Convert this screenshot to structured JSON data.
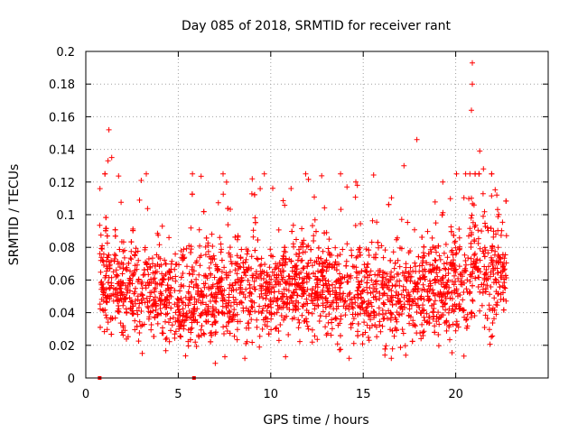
{
  "chart_data": {
    "type": "scatter",
    "title": "Day 085 of 2018, SRMTID for receiver rant",
    "xlabel": "GPS time / hours",
    "ylabel": "SRMTID / TECUs",
    "xlim": [
      0,
      25
    ],
    "ylim": [
      0,
      0.2
    ],
    "xticks": [
      0,
      5,
      10,
      15,
      20
    ],
    "xtick_labels": [
      "0",
      "5",
      "10",
      "15",
      "20"
    ],
    "yticks": [
      0,
      0.02,
      0.04,
      0.06,
      0.08,
      0.1,
      0.12,
      0.14,
      0.16,
      0.18,
      0.2
    ],
    "ytick_labels": [
      "0",
      "0.02",
      "0.04",
      "0.06",
      "0.08",
      "0.1",
      "0.12",
      "0.14",
      "0.16",
      "0.18",
      "0.2"
    ],
    "grid": true,
    "marker": "+",
    "marker_color": "#ff0000",
    "series": [
      {
        "name": "SRMTID",
        "color": "#ff0000",
        "approx_point_count": 2600,
        "time_range_hours": [
          0.75,
          22.75
        ],
        "baseline_profile": [
          [
            0.75,
            0.062
          ],
          [
            1.5,
            0.058
          ],
          [
            2.5,
            0.052
          ],
          [
            3.5,
            0.055
          ],
          [
            4.5,
            0.05
          ],
          [
            5.5,
            0.048
          ],
          [
            6.5,
            0.052
          ],
          [
            7.5,
            0.05
          ],
          [
            8.5,
            0.055
          ],
          [
            9.5,
            0.053
          ],
          [
            10.5,
            0.055
          ],
          [
            11.5,
            0.058
          ],
          [
            12.5,
            0.056
          ],
          [
            13.5,
            0.057
          ],
          [
            14.5,
            0.054
          ],
          [
            15.5,
            0.052
          ],
          [
            16.5,
            0.05
          ],
          [
            17.5,
            0.052
          ],
          [
            18.5,
            0.054
          ],
          [
            19.5,
            0.052
          ],
          [
            20.5,
            0.062
          ],
          [
            21.0,
            0.072
          ],
          [
            21.5,
            0.068
          ],
          [
            22.0,
            0.065
          ],
          [
            22.75,
            0.063
          ]
        ],
        "spread": 0.015,
        "notable_points": [
          {
            "x": 1.25,
            "y": 0.152
          },
          {
            "x": 1.2,
            "y": 0.133
          },
          {
            "x": 1.4,
            "y": 0.135
          },
          {
            "x": 3.0,
            "y": 0.121
          },
          {
            "x": 9.0,
            "y": 0.122
          },
          {
            "x": 11.1,
            "y": 0.116
          },
          {
            "x": 14.6,
            "y": 0.12
          },
          {
            "x": 17.2,
            "y": 0.13
          },
          {
            "x": 17.9,
            "y": 0.146
          },
          {
            "x": 19.3,
            "y": 0.12
          },
          {
            "x": 20.9,
            "y": 0.193
          },
          {
            "x": 20.9,
            "y": 0.18
          },
          {
            "x": 20.85,
            "y": 0.164
          },
          {
            "x": 21.3,
            "y": 0.139
          },
          {
            "x": 21.5,
            "y": 0.128
          },
          {
            "x": 7.0,
            "y": 0.009
          },
          {
            "x": 17.3,
            "y": 0.014
          },
          {
            "x": 10.8,
            "y": 0.013
          }
        ],
        "zero_markers_x": [
          0.75,
          5.85
        ]
      }
    ]
  }
}
